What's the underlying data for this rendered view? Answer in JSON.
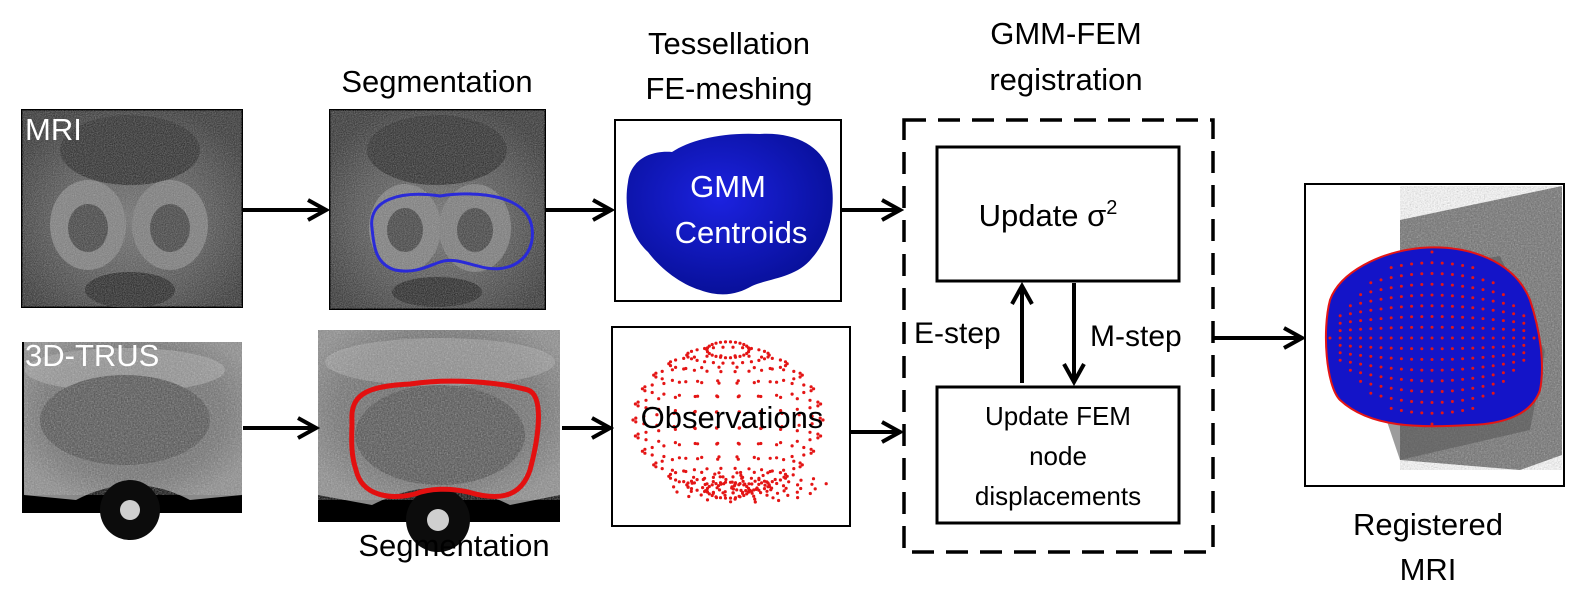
{
  "labels": {
    "mri": "MRI",
    "trus": "3D-TRUS",
    "segmentation_top": "Segmentation",
    "segmentation_bottom": "Segmentation",
    "tessellation_line1": "Tessellation",
    "tessellation_line2": "FE-meshing",
    "gmm_centroids_line1": "GMM",
    "gmm_centroids_line2": "Centroids",
    "observations": "Observations",
    "gmmfem_line1": "GMM-FEM",
    "gmmfem_line2": "registration",
    "update_sigma": "Update σ",
    "update_sigma_sup": "2",
    "update_fem_line1": "Update FEM",
    "update_fem_line2": "node",
    "update_fem_line3": "displacements",
    "estep": "E-step",
    "mstep": "M-step",
    "registered_line1": "Registered",
    "registered_line2": "MRI"
  },
  "colors": {
    "mesh_blue": "#0a10c8",
    "seg_blue": "#2a2ad8",
    "seg_red": "#e31010",
    "point_red": "#e41515",
    "arrow": "#000000"
  }
}
